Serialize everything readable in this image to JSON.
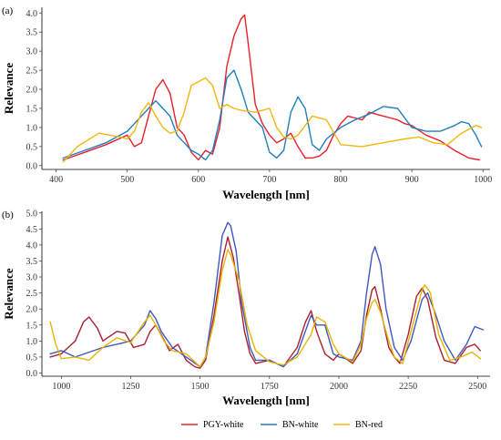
{
  "chart_data": [
    {
      "panel": "(a)",
      "type": "line",
      "xlabel": "Wavelength [nm]",
      "ylabel": "Relevance",
      "xlim": [
        380,
        1010
      ],
      "ylim": [
        -0.1,
        4.15
      ],
      "xticks": [
        400,
        500,
        600,
        700,
        800,
        900,
        1000
      ],
      "yticks": [
        0.0,
        0.5,
        1.0,
        1.5,
        2.0,
        2.5,
        3.0,
        3.5,
        4.0
      ],
      "yticklabels": [
        "0.0",
        "0.5",
        "1.0",
        "1.5",
        "2.0",
        "2.5",
        "3.0",
        "3.5",
        "4.0"
      ],
      "grid": false,
      "series": [
        {
          "name": "PGY-white",
          "color": "#e8202a",
          "x": [
            410,
            440,
            470,
            500,
            510,
            520,
            530,
            540,
            550,
            560,
            570,
            580,
            590,
            600,
            610,
            620,
            630,
            640,
            650,
            660,
            665,
            670,
            680,
            690,
            700,
            710,
            720,
            730,
            740,
            750,
            760,
            770,
            780,
            790,
            800,
            810,
            820,
            830,
            840,
            850,
            860,
            870,
            880,
            890,
            900,
            920,
            940,
            960,
            980,
            995
          ],
          "y": [
            0.15,
            0.35,
            0.55,
            0.8,
            0.5,
            0.6,
            1.3,
            2.0,
            2.25,
            1.9,
            1.0,
            0.8,
            0.35,
            0.15,
            0.4,
            0.3,
            1.0,
            2.6,
            3.4,
            3.85,
            3.95,
            3.2,
            1.6,
            1.1,
            0.8,
            0.6,
            0.7,
            0.85,
            0.5,
            0.2,
            0.2,
            0.25,
            0.4,
            0.8,
            1.1,
            1.3,
            1.25,
            1.2,
            1.4,
            1.35,
            1.3,
            1.25,
            1.2,
            1.1,
            1.05,
            0.8,
            0.65,
            0.4,
            0.2,
            0.15
          ]
        },
        {
          "name": "BN-white",
          "color": "#1f7fc0",
          "x": [
            410,
            440,
            470,
            500,
            520,
            540,
            560,
            570,
            580,
            590,
            600,
            610,
            620,
            630,
            640,
            650,
            660,
            670,
            680,
            690,
            700,
            710,
            720,
            730,
            740,
            750,
            760,
            770,
            780,
            800,
            820,
            840,
            860,
            880,
            900,
            920,
            940,
            960,
            970,
            980,
            990,
            998
          ],
          "y": [
            0.2,
            0.4,
            0.6,
            0.9,
            1.3,
            1.7,
            1.3,
            0.8,
            0.6,
            0.4,
            0.3,
            0.15,
            0.4,
            1.2,
            2.3,
            2.5,
            2.0,
            1.4,
            1.2,
            1.0,
            0.35,
            0.2,
            0.4,
            1.4,
            1.8,
            1.5,
            0.55,
            0.4,
            0.7,
            1.0,
            1.2,
            1.35,
            1.55,
            1.5,
            1.0,
            0.9,
            0.9,
            1.05,
            1.15,
            1.1,
            0.8,
            0.5
          ]
        },
        {
          "name": "BN-red",
          "color": "#f2b70f",
          "x": [
            410,
            430,
            460,
            490,
            500,
            510,
            520,
            530,
            540,
            550,
            560,
            570,
            580,
            590,
            600,
            610,
            620,
            630,
            640,
            650,
            660,
            680,
            700,
            710,
            720,
            730,
            740,
            760,
            780,
            800,
            830,
            860,
            890,
            910,
            930,
            950,
            970,
            990,
            998
          ],
          "y": [
            0.1,
            0.5,
            0.85,
            0.75,
            0.7,
            0.9,
            1.4,
            1.65,
            1.3,
            1.0,
            0.85,
            0.9,
            1.4,
            2.1,
            2.2,
            2.3,
            2.1,
            1.5,
            1.6,
            1.5,
            1.45,
            1.4,
            1.5,
            1.0,
            0.75,
            0.7,
            0.8,
            1.3,
            1.2,
            0.55,
            0.5,
            0.6,
            0.7,
            0.75,
            0.6,
            0.55,
            0.85,
            1.05,
            1.0
          ]
        }
      ]
    },
    {
      "panel": "(b)",
      "type": "line",
      "xlabel": "Wavelength [nm]",
      "ylabel": "Relevance",
      "xlim": [
        930,
        2545
      ],
      "ylim": [
        -0.1,
        5.05
      ],
      "xticks": [
        1000,
        1250,
        1500,
        1750,
        2000,
        2250,
        2500
      ],
      "yticks": [
        0.0,
        0.5,
        1.0,
        1.5,
        2.0,
        2.5,
        3.0,
        3.5,
        4.0,
        4.5,
        5.0
      ],
      "yticklabels": [
        "0.0",
        "0.5",
        "1.0",
        "1.5",
        "2.0",
        "2.5",
        "3.0",
        "3.5",
        "4.0",
        "4.5",
        "5.0"
      ],
      "grid": false,
      "series": [
        {
          "name": "PGY-white",
          "color": "#a82030",
          "x": [
            960,
            1000,
            1050,
            1080,
            1100,
            1130,
            1150,
            1200,
            1230,
            1260,
            1300,
            1320,
            1340,
            1360,
            1390,
            1420,
            1450,
            1480,
            1500,
            1520,
            1550,
            1580,
            1600,
            1620,
            1640,
            1660,
            1680,
            1700,
            1750,
            1800,
            1850,
            1880,
            1900,
            1920,
            1950,
            1980,
            2000,
            2050,
            2080,
            2100,
            2120,
            2130,
            2150,
            2180,
            2200,
            2220,
            2250,
            2280,
            2300,
            2320,
            2350,
            2380,
            2420,
            2460,
            2490,
            2510
          ],
          "y": [
            0.5,
            0.6,
            1.0,
            1.6,
            1.75,
            1.4,
            1.0,
            1.3,
            1.25,
            0.8,
            0.9,
            1.3,
            1.5,
            1.2,
            0.7,
            0.9,
            0.4,
            0.2,
            0.15,
            0.4,
            1.8,
            3.5,
            4.25,
            3.6,
            2.5,
            1.3,
            0.6,
            0.3,
            0.4,
            0.2,
            0.8,
            1.6,
            1.95,
            1.3,
            0.6,
            0.4,
            0.6,
            0.3,
            0.7,
            1.8,
            2.6,
            2.7,
            2.0,
            0.8,
            0.5,
            0.3,
            1.2,
            2.4,
            2.65,
            2.3,
            1.1,
            0.4,
            0.3,
            0.8,
            0.9,
            0.7
          ]
        },
        {
          "name": "BN-white",
          "color": "#3f58c0",
          "x": [
            960,
            1000,
            1050,
            1100,
            1150,
            1200,
            1250,
            1300,
            1320,
            1340,
            1360,
            1400,
            1450,
            1500,
            1520,
            1550,
            1580,
            1600,
            1610,
            1630,
            1650,
            1680,
            1700,
            1750,
            1800,
            1850,
            1900,
            1920,
            1950,
            1980,
            2000,
            2050,
            2080,
            2100,
            2120,
            2130,
            2150,
            2170,
            2200,
            2230,
            2260,
            2300,
            2320,
            2350,
            2380,
            2420,
            2460,
            2490,
            2520
          ],
          "y": [
            0.6,
            0.7,
            0.5,
            0.65,
            0.8,
            0.9,
            1.0,
            1.5,
            1.95,
            1.7,
            1.3,
            0.8,
            0.5,
            0.2,
            0.5,
            2.2,
            4.3,
            4.7,
            4.6,
            3.8,
            2.2,
            0.8,
            0.4,
            0.4,
            0.2,
            0.6,
            1.8,
            1.5,
            1.5,
            0.6,
            0.5,
            0.4,
            1.0,
            2.5,
            3.7,
            3.95,
            3.4,
            2.0,
            0.8,
            0.4,
            1.0,
            2.3,
            2.5,
            1.8,
            1.0,
            0.4,
            0.9,
            1.45,
            1.35
          ]
        },
        {
          "name": "BN-red",
          "color": "#e8b400",
          "x": [
            960,
            980,
            1000,
            1050,
            1100,
            1150,
            1200,
            1250,
            1300,
            1320,
            1340,
            1370,
            1400,
            1450,
            1500,
            1520,
            1550,
            1580,
            1600,
            1610,
            1640,
            1670,
            1700,
            1750,
            1800,
            1850,
            1900,
            1920,
            1950,
            1980,
            2000,
            2050,
            2080,
            2100,
            2120,
            2130,
            2150,
            2180,
            2200,
            2230,
            2260,
            2300,
            2310,
            2330,
            2360,
            2400,
            2440,
            2480,
            2510
          ],
          "y": [
            1.6,
            0.9,
            0.45,
            0.5,
            0.4,
            0.8,
            1.1,
            0.95,
            1.6,
            1.8,
            1.5,
            1.0,
            0.7,
            0.6,
            0.2,
            0.5,
            1.6,
            3.2,
            3.85,
            3.7,
            2.9,
            1.5,
            0.7,
            0.35,
            0.25,
            0.5,
            1.2,
            1.75,
            1.6,
            0.9,
            0.6,
            0.35,
            0.9,
            1.7,
            2.2,
            2.3,
            1.9,
            1.0,
            0.5,
            0.3,
            1.3,
            2.6,
            2.75,
            2.5,
            1.2,
            0.4,
            0.5,
            0.65,
            0.45
          ]
        }
      ]
    }
  ],
  "legend": {
    "placement": "bottom-center",
    "items": [
      {
        "name": "PGY-white",
        "color": "#e8202a"
      },
      {
        "name": "BN-white",
        "color": "#1f7fc0"
      },
      {
        "name": "BN-red",
        "color": "#f2b70f"
      }
    ]
  }
}
